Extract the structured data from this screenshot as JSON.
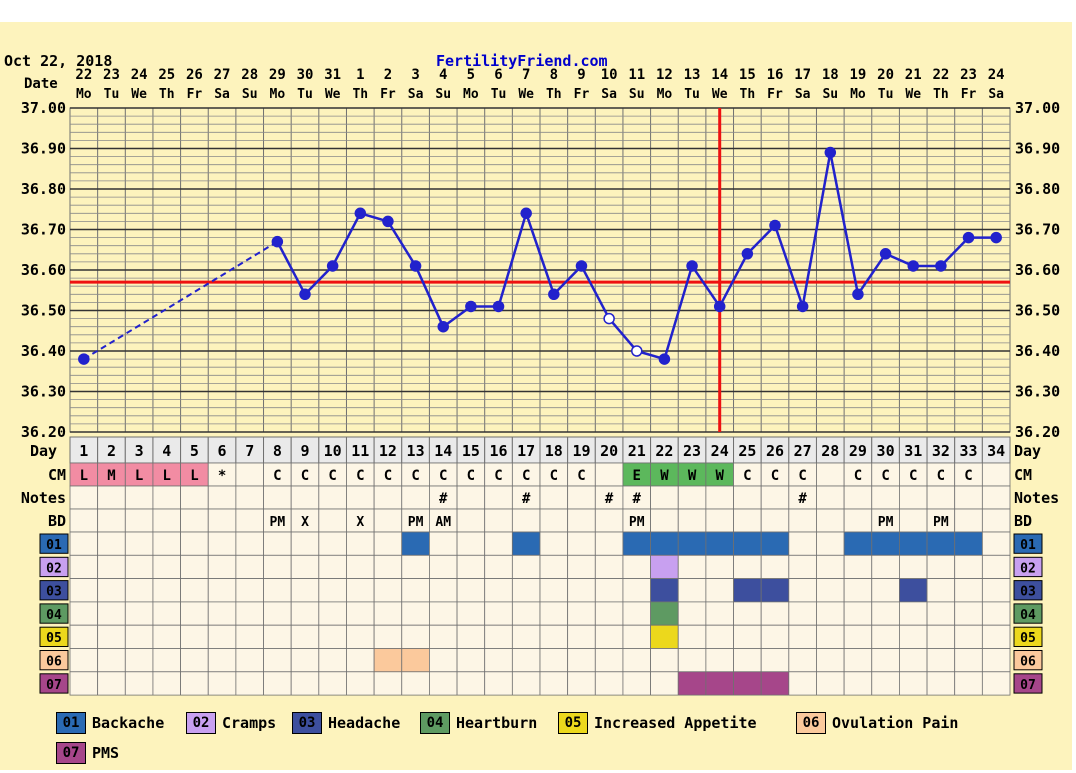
{
  "header": {
    "date": "Oct 22, 2018",
    "site": "FertilityFriend.com"
  },
  "row_labels": {
    "date": "Date",
    "day": "Day",
    "cm": "CM",
    "notes": "Notes",
    "bd": "BD"
  },
  "chart_data": {
    "type": "line",
    "title": "",
    "xlabel": "",
    "ylabel": "",
    "ylim": [
      36.2,
      37.0
    ],
    "y_ticks": [
      "36.20",
      "36.30",
      "36.40",
      "36.50",
      "36.60",
      "36.70",
      "36.80",
      "36.90",
      "37.00"
    ],
    "grid": true,
    "dates": [
      "22",
      "23",
      "24",
      "25",
      "26",
      "27",
      "28",
      "29",
      "30",
      "31",
      "1",
      "2",
      "3",
      "4",
      "5",
      "6",
      "7",
      "8",
      "9",
      "10",
      "11",
      "12",
      "13",
      "14",
      "15",
      "16",
      "17",
      "18",
      "19",
      "20",
      "21",
      "22",
      "23",
      "24"
    ],
    "weekdays": [
      "Mo",
      "Tu",
      "We",
      "Th",
      "Fr",
      "Sa",
      "Su",
      "Mo",
      "Tu",
      "We",
      "Th",
      "Fr",
      "Sa",
      "Su",
      "Mo",
      "Tu",
      "We",
      "Th",
      "Fr",
      "Sa",
      "Su",
      "Mo",
      "Tu",
      "We",
      "Th",
      "Fr",
      "Sa",
      "Su",
      "Mo",
      "Tu",
      "We",
      "Th",
      "Fr",
      "Sa"
    ],
    "days": [
      "1",
      "2",
      "3",
      "4",
      "5",
      "6",
      "7",
      "8",
      "9",
      "10",
      "11",
      "12",
      "13",
      "14",
      "15",
      "16",
      "17",
      "18",
      "19",
      "20",
      "21",
      "22",
      "23",
      "24",
      "25",
      "26",
      "27",
      "28",
      "29",
      "30",
      "31",
      "32",
      "33",
      "34"
    ],
    "temperatures": [
      36.38,
      null,
      null,
      null,
      null,
      null,
      null,
      36.67,
      36.54,
      36.61,
      36.74,
      36.72,
      36.61,
      36.46,
      36.51,
      36.51,
      36.74,
      36.54,
      36.61,
      36.48,
      36.4,
      36.38,
      36.61,
      36.51,
      36.64,
      36.71,
      36.51,
      36.89,
      36.54,
      36.64,
      36.61,
      36.61,
      36.68,
      36.68
    ],
    "open_points": [
      20,
      21
    ],
    "interpolated_segment": [
      1,
      8
    ],
    "coverline": 36.57,
    "ovulation_day": 24,
    "cm": [
      "L",
      "M",
      "L",
      "L",
      "L",
      "*",
      "",
      "C",
      "C",
      "C",
      "C",
      "C",
      "C",
      "C",
      "C",
      "C",
      "C",
      "C",
      "C",
      "",
      "E",
      "W",
      "W",
      "W",
      "C",
      "C",
      "C",
      "",
      "C",
      "C",
      "C",
      "C",
      "C",
      ""
    ],
    "cm_colors": {
      "L": "#f28ca3",
      "M": "#f28ca3",
      "E": "#5cb85c",
      "W": "#5cb85c"
    },
    "notes": {
      "14": "#",
      "17": "#",
      "20": "#",
      "21": "#",
      "27": "#"
    },
    "bd": {
      "8": "PM",
      "9": "X",
      "11": "X",
      "13": "PM",
      "14": "AM",
      "21": "PM",
      "30": "PM",
      "32": "PM"
    },
    "symptom_rows": [
      {
        "code": "01",
        "name": "Backache",
        "color": "#2a6ab3",
        "days": [
          13,
          17,
          21,
          22,
          23,
          24,
          25,
          26,
          29,
          30,
          31,
          32,
          33
        ]
      },
      {
        "code": "02",
        "name": "Cramps",
        "color": "#c8a0f0",
        "days": [
          22
        ]
      },
      {
        "code": "03",
        "name": "Headache",
        "color": "#3d4f9e",
        "days": [
          22,
          25,
          26,
          31
        ]
      },
      {
        "code": "04",
        "name": "Heartburn",
        "color": "#5e9a62",
        "days": [
          22
        ]
      },
      {
        "code": "05",
        "name": "Increased Appetite",
        "color": "#ecd81c",
        "days": [
          22
        ]
      },
      {
        "code": "06",
        "name": "Ovulation Pain",
        "color": "#fbc99c",
        "days": [
          12,
          13
        ]
      },
      {
        "code": "07",
        "name": "PMS",
        "color": "#a6468a",
        "days": [
          23,
          24,
          25,
          26
        ]
      }
    ]
  },
  "colors": {
    "line": "#2222cc",
    "coverline": "#ee1111",
    "grid": "#707070",
    "background": "#fdf3bd",
    "cell": "#fdf6e6"
  }
}
